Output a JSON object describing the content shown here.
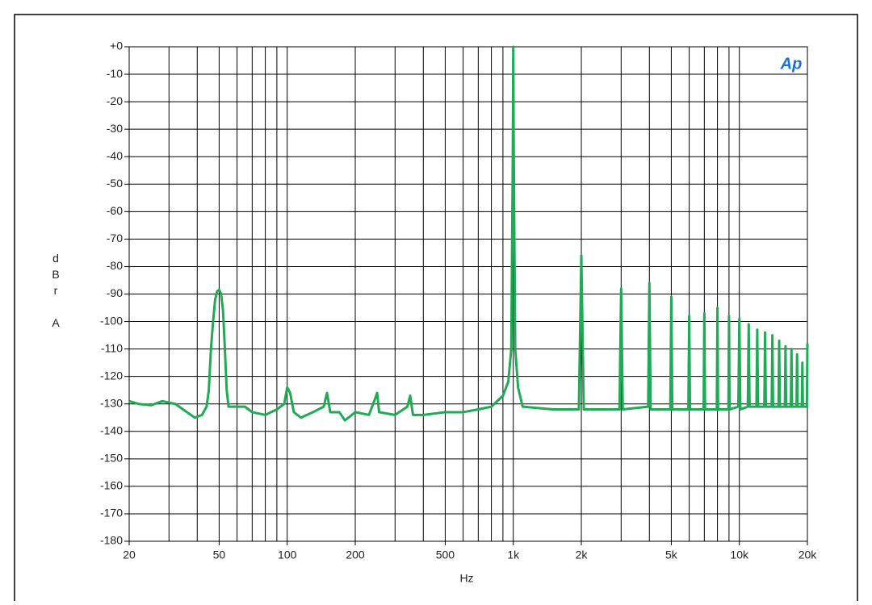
{
  "chart_data": {
    "type": "line",
    "x_label": "Hz",
    "y_label": "dBr A",
    "logo": "Ap",
    "xlog": true,
    "grid": true,
    "xlim": [
      20,
      20000
    ],
    "ylim": [
      -180,
      0
    ],
    "xticks": [
      20,
      50,
      100,
      200,
      500,
      {
        "value": 1000,
        "label": "1k"
      },
      {
        "value": 2000,
        "label": "2k"
      },
      {
        "value": 5000,
        "label": "5k"
      },
      {
        "value": 10000,
        "label": "10k"
      },
      {
        "value": 20000,
        "label": "20k"
      }
    ],
    "xgrid": [
      20,
      30,
      40,
      50,
      60,
      70,
      80,
      90,
      100,
      200,
      300,
      400,
      500,
      600,
      700,
      800,
      900,
      1000,
      2000,
      3000,
      4000,
      5000,
      6000,
      7000,
      8000,
      9000,
      10000,
      20000
    ],
    "yticks": [
      {
        "value": 0,
        "label": "+0"
      },
      -10,
      -20,
      -30,
      -40,
      -50,
      -60,
      -70,
      -80,
      -90,
      -100,
      -110,
      -120,
      -130,
      -140,
      -150,
      -160,
      -170,
      -180
    ],
    "series": [
      {
        "color": "#1faa55",
        "x": [
          20,
          22,
          25,
          28,
          32,
          36,
          39,
          42,
          44,
          45,
          46,
          47,
          48,
          49,
          50,
          51,
          52,
          53,
          54,
          55,
          60,
          65,
          70,
          80,
          90,
          97,
          100,
          103,
          107,
          115,
          130,
          145,
          150,
          155,
          170,
          180,
          200,
          230,
          245,
          250,
          255,
          300,
          340,
          350,
          360,
          400,
          500,
          600,
          700,
          800,
          900,
          950,
          980,
          995,
          1000,
          1005,
          1020,
          1050,
          1100,
          1500,
          1950,
          2000,
          2050,
          2950,
          3000,
          3050,
          3950,
          4000,
          4050,
          4950,
          5000,
          5050,
          5950,
          6000,
          6050,
          6950,
          7000,
          7050,
          7950,
          8000,
          8050,
          8950,
          9000,
          9050,
          9900,
          10000,
          10100,
          10900,
          11000,
          11100,
          11900,
          12000,
          12100,
          12900,
          13000,
          13100,
          13900,
          14000,
          14100,
          14900,
          15000,
          15100,
          15900,
          16000,
          16100,
          16900,
          17000,
          17100,
          17900,
          18000,
          18100,
          18900,
          19000,
          19100,
          19900,
          20000
        ],
        "values": [
          -129,
          -130,
          -130.5,
          -129,
          -130,
          -133,
          -135,
          -134,
          -131,
          -125,
          -110,
          -100,
          -92,
          -89,
          -88.5,
          -90,
          -96,
          -110,
          -125,
          -131,
          -131,
          -131,
          -133,
          -134,
          -132,
          -130,
          -124,
          -126,
          -133,
          -135,
          -133,
          -131,
          -126,
          -133,
          -133,
          -136,
          -133,
          -134,
          -128,
          -126,
          -133,
          -134,
          -131,
          -127,
          -134,
          -134,
          -133,
          -133,
          -132,
          -131,
          -127,
          -122,
          -110,
          -40,
          0,
          -40,
          -110,
          -124,
          -131,
          -132,
          -132,
          -76,
          -132,
          -132,
          -88,
          -132,
          -131,
          -86,
          -132,
          -132,
          -91,
          -132,
          -132,
          -98,
          -132,
          -132,
          -97,
          -132,
          -132,
          -95,
          -132,
          -132,
          -98,
          -132,
          -131,
          -99,
          -132,
          -131,
          -101,
          -131,
          -131,
          -103,
          -131,
          -131,
          -104,
          -131,
          -131,
          -105,
          -131,
          -131,
          -107,
          -131,
          -131,
          -109,
          -131,
          -131,
          -110,
          -131,
          -131,
          -112,
          -131,
          -131,
          -115,
          -131,
          -131,
          -108
        ]
      }
    ]
  }
}
